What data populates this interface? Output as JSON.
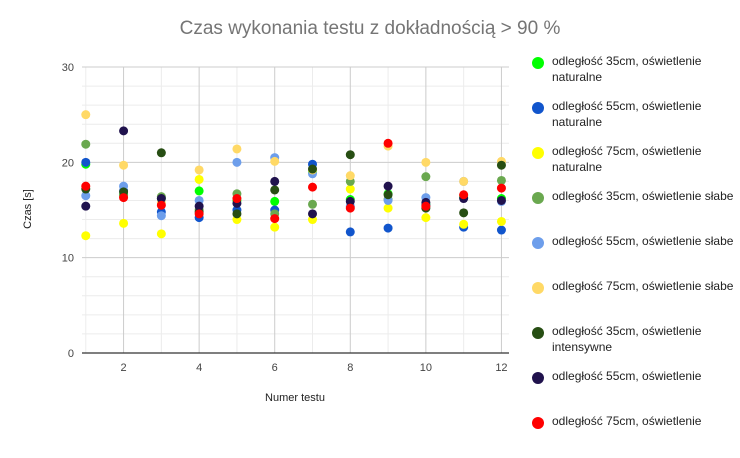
{
  "chart_data": {
    "type": "scatter",
    "title": "Czas wykonania testu z dokładnością > 90 %",
    "xlabel": "Numer testu",
    "ylabel": "Czas [s]",
    "xlim": [
      0.9,
      12.2
    ],
    "ylim": [
      0,
      30
    ],
    "xticks": [
      "2",
      "4",
      "6",
      "8",
      "10",
      "12"
    ],
    "yticks": [
      "0",
      "10",
      "20",
      "30"
    ],
    "grid": true,
    "legend_position": "right",
    "series": [
      {
        "name": "odległość 35cm, oświetlenie naturalne",
        "color": "#00ff00",
        "x": [
          1,
          2,
          3,
          4,
          5,
          6,
          7,
          8,
          9,
          10,
          11,
          12
        ],
        "y": [
          19.8,
          16.6,
          16.2,
          17.0,
          16.0,
          15.9,
          19.0,
          16.1,
          16.7,
          15.6,
          16.3,
          16.2
        ]
      },
      {
        "name": "odległość 55cm, oświetlenie naturalne",
        "color": "#1155cc",
        "x": [
          1,
          2,
          3,
          4,
          5,
          6,
          7,
          8,
          9,
          10,
          11,
          12
        ],
        "y": [
          20.0,
          17.0,
          14.8,
          14.2,
          15.0,
          15.0,
          19.8,
          12.7,
          13.1,
          15.5,
          13.2,
          12.9
        ]
      },
      {
        "name": "odległość 75cm, oświetlenie naturalne",
        "color": "#ffff00",
        "x": [
          1,
          2,
          3,
          4,
          5,
          6,
          7,
          8,
          9,
          10,
          11,
          12
        ],
        "y": [
          12.3,
          13.6,
          12.5,
          18.2,
          14.0,
          13.2,
          14.0,
          17.2,
          15.2,
          14.2,
          13.5,
          13.8
        ]
      },
      {
        "name": "odległość 35cm, oświetlenie słabe",
        "color": "#6aa84f",
        "x": [
          1,
          2,
          3,
          4,
          5,
          6,
          7,
          8,
          9,
          10,
          11,
          12
        ],
        "y": [
          21.9,
          16.5,
          16.4,
          15.0,
          16.7,
          14.6,
          15.6,
          18.0,
          16.1,
          18.5,
          16.5,
          18.1
        ]
      },
      {
        "name": "odległość 55cm, oświetlenie słabe",
        "color": "#6d9eeb",
        "x": [
          1,
          2,
          3,
          4,
          5,
          6,
          7,
          8,
          9,
          10,
          11,
          12
        ],
        "y": [
          16.5,
          17.5,
          14.4,
          16.0,
          20.0,
          20.5,
          18.8,
          15.4,
          16.0,
          16.3,
          18.0,
          15.9
        ]
      },
      {
        "name": "odległość 75cm, oświetlenie słabe",
        "color": "#ffd966",
        "x": [
          1,
          2,
          3,
          4,
          5,
          6,
          7,
          8,
          9,
          10,
          11,
          12
        ],
        "y": [
          25.0,
          19.7,
          15.8,
          19.2,
          21.4,
          20.1,
          19.2,
          18.6,
          21.7,
          20.0,
          18.0,
          20.1
        ]
      },
      {
        "name": "odległość 35cm, oświetlenie intensywne",
        "color": "#274e13",
        "x": [
          1,
          2,
          3,
          4,
          5,
          6,
          7,
          8,
          9,
          10,
          11,
          12
        ],
        "y": [
          17.2,
          16.9,
          21.0,
          14.8,
          14.6,
          17.1,
          19.3,
          20.8,
          16.6,
          15.2,
          14.7,
          19.7
        ]
      },
      {
        "name": "odległość 55cm, oświetlenie",
        "color": "#20124d",
        "x": [
          1,
          2,
          3,
          4,
          5,
          6,
          7,
          8,
          9,
          10,
          11,
          12
        ],
        "y": [
          15.4,
          23.3,
          16.2,
          15.4,
          15.7,
          18.0,
          14.6,
          15.9,
          17.5,
          15.8,
          16.2,
          16.0
        ]
      },
      {
        "name": "odległość 75cm, oświetlenie",
        "color": "#ff0000",
        "x": [
          1,
          2,
          3,
          4,
          5,
          6,
          7,
          8,
          9,
          10,
          11,
          12
        ],
        "y": [
          17.5,
          16.3,
          15.5,
          14.6,
          16.2,
          14.1,
          17.4,
          15.2,
          22.0,
          15.4,
          16.6,
          17.3
        ]
      }
    ]
  }
}
